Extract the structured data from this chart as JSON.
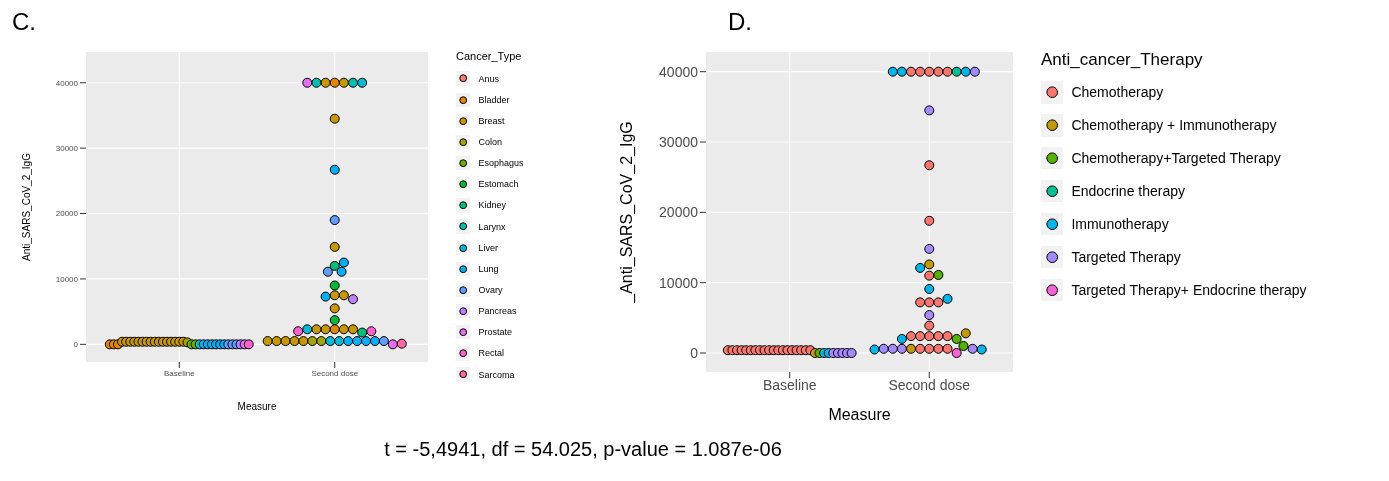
{
  "chart_data": [
    {
      "type": "scatter",
      "title": "C.",
      "xlabel": "Measure",
      "ylabel": "Anti_SARS_CoV_2_IgG",
      "legend_title": "Cancer_Type",
      "categories": [
        "Baseline",
        "Second dose"
      ],
      "ylim": [
        -2700,
        44700
      ],
      "yticks": [
        0,
        10000,
        20000,
        30000,
        40000
      ],
      "grid": true,
      "legend": "right",
      "marker": "circle",
      "annotations": [
        "t = -5,4941, df = 54.025, p-value = 1.087e-06"
      ],
      "series": [
        {
          "name": "Anus",
          "color": "#f8766d",
          "x": [
            "Baseline"
          ],
          "values": [
            null
          ]
        },
        {
          "name": "Bladder",
          "color": "#e58700",
          "x": [
            "Baseline",
            "Baseline",
            "Baseline",
            "Second dose",
            "Second dose"
          ],
          "values": [
            0,
            0,
            0,
            40000,
            2300
          ]
        },
        {
          "name": "Breast",
          "color": "#c99800",
          "x": [
            "Baseline",
            "Baseline",
            "Baseline",
            "Baseline",
            "Baseline",
            "Baseline",
            "Baseline",
            "Baseline",
            "Baseline",
            "Baseline",
            "Baseline",
            "Baseline",
            "Baseline",
            "Baseline",
            "Baseline",
            "Baseline",
            "Second dose",
            "Second dose",
            "Second dose",
            "Second dose",
            "Second dose",
            "Second dose",
            "Second dose",
            "Second dose",
            "Second dose",
            "Second dose",
            "Second dose",
            "Second dose",
            "Second dose",
            "Second dose",
            "Second dose",
            "Second dose"
          ],
          "values": [
            400,
            400,
            400,
            400,
            400,
            400,
            400,
            400,
            400,
            400,
            400,
            400,
            400,
            400,
            400,
            400,
            40000,
            40000,
            34500,
            14900,
            7500,
            7500,
            5500,
            2300,
            2300,
            2300,
            2300,
            500,
            500,
            500,
            500,
            500
          ]
        },
        {
          "name": "Colon",
          "color": "#a3a500",
          "x": [
            "Baseline",
            "Second dose",
            "Second dose"
          ],
          "values": [
            300,
            500,
            500
          ]
        },
        {
          "name": "Esophagus",
          "color": "#6bb100",
          "x": [
            "Baseline",
            "Baseline"
          ],
          "values": [
            0,
            0
          ]
        },
        {
          "name": "Estomach",
          "color": "#00ba38",
          "x": [
            "Second dose",
            "Second dose"
          ],
          "values": [
            9000,
            3700
          ]
        },
        {
          "name": "Kidney",
          "color": "#00bf7d",
          "x": [
            "Second dose",
            "Second dose"
          ],
          "values": [
            12000,
            1800
          ]
        },
        {
          "name": "Larynx",
          "color": "#00c0af",
          "x": [
            "Second dose",
            "Second dose"
          ],
          "values": [
            40000,
            40000
          ]
        },
        {
          "name": "Liver",
          "color": "#00bcd8",
          "x": [
            "Baseline",
            "Second dose",
            "Second dose",
            "Second dose",
            "Second dose"
          ],
          "values": [
            0,
            40000,
            2300,
            500,
            500
          ]
        },
        {
          "name": "Lung",
          "color": "#00b0f6",
          "x": [
            "Baseline",
            "Baseline",
            "Baseline",
            "Baseline",
            "Baseline",
            "Baseline",
            "Second dose",
            "Second dose",
            "Second dose",
            "Second dose",
            "Second dose",
            "Second dose",
            "Second dose",
            "Second dose"
          ],
          "values": [
            0,
            0,
            0,
            0,
            0,
            0,
            26700,
            12500,
            11100,
            7300,
            500,
            500,
            500,
            500
          ]
        },
        {
          "name": "Ovary",
          "color": "#619cff",
          "x": [
            "Baseline",
            "Baseline",
            "Baseline",
            "Second dose",
            "Second dose",
            "Second dose"
          ],
          "values": [
            0,
            0,
            0,
            19000,
            11100,
            500
          ]
        },
        {
          "name": "Pancreas",
          "color": "#b983ff",
          "x": [
            "Baseline",
            "Second dose"
          ],
          "values": [
            0,
            6900
          ]
        },
        {
          "name": "Prostate",
          "color": "#e76bf3",
          "x": [
            "Baseline",
            "Second dose",
            "Second dose"
          ],
          "values": [
            0,
            40000,
            0
          ]
        },
        {
          "name": "Rectal",
          "color": "#fd61d1",
          "x": [
            "Baseline",
            "Second dose",
            "Second dose"
          ],
          "values": [
            0,
            2000,
            2000
          ]
        },
        {
          "name": "Sarcoma",
          "color": "#ff67a4",
          "x": [
            "Second dose"
          ],
          "values": [
            100
          ]
        }
      ]
    },
    {
      "type": "scatter",
      "title": "D.",
      "xlabel": "Measure",
      "ylabel": "_Anti_SARS_CoV_2_IgG",
      "legend_title": "Anti_cancer_Therapy",
      "categories": [
        "Baseline",
        "Second dose"
      ],
      "ylim": [
        -2700,
        42800
      ],
      "yticks": [
        0,
        10000,
        20000,
        30000,
        40000
      ],
      "grid": true,
      "legend": "right",
      "marker": "circle",
      "series": [
        {
          "name": "Chemotherapy",
          "color": "#f8766d",
          "x": [
            "Baseline",
            "Baseline",
            "Baseline",
            "Baseline",
            "Baseline",
            "Baseline",
            "Baseline",
            "Baseline",
            "Baseline",
            "Baseline",
            "Baseline",
            "Baseline",
            "Baseline",
            "Baseline",
            "Baseline",
            "Baseline",
            "Baseline",
            "Baseline",
            "Baseline",
            "Second dose",
            "Second dose",
            "Second dose",
            "Second dose",
            "Second dose",
            "Second dose",
            "Second dose",
            "Second dose",
            "Second dose",
            "Second dose",
            "Second dose",
            "Second dose",
            "Second dose",
            "Second dose",
            "Second dose",
            "Second dose",
            "Second dose",
            "Second dose",
            "Second dose",
            "Second dose",
            "Second dose"
          ],
          "values": [
            400,
            400,
            400,
            400,
            400,
            400,
            400,
            400,
            400,
            400,
            400,
            400,
            400,
            400,
            400,
            400,
            400,
            400,
            400,
            40000,
            40000,
            40000,
            40000,
            40000,
            26700,
            18800,
            11000,
            7200,
            7200,
            7200,
            3900,
            2400,
            2400,
            2400,
            2400,
            2400,
            600,
            600,
            600,
            600
          ]
        },
        {
          "name": "Chemotherapy + Immunotherapy",
          "color": "#c49a00",
          "x": [
            "Baseline",
            "Second dose",
            "Second dose",
            "Second dose"
          ],
          "values": [
            0,
            12600,
            2800,
            600
          ]
        },
        {
          "name": "Chemotherapy+Targeted Therapy",
          "color": "#53b400",
          "x": [
            "Baseline",
            "Second dose",
            "Second dose",
            "Second dose"
          ],
          "values": [
            0,
            11100,
            2000,
            1000
          ]
        },
        {
          "name": "Endocrine therapy",
          "color": "#00c094",
          "x": [
            "Second dose"
          ],
          "values": [
            40000
          ]
        },
        {
          "name": "Immunotherapy",
          "color": "#00b6eb",
          "x": [
            "Baseline",
            "Baseline",
            "Second dose",
            "Second dose",
            "Second dose",
            "Second dose",
            "Second dose",
            "Second dose",
            "Second dose",
            "Second dose",
            "Second dose"
          ],
          "values": [
            0,
            0,
            40000,
            40000,
            40000,
            12100,
            9100,
            7700,
            2000,
            500,
            500
          ]
        },
        {
          "name": "Targeted Therapy",
          "color": "#a58aff",
          "x": [
            "Baseline",
            "Baseline",
            "Baseline",
            "Baseline",
            "Baseline",
            "Second dose",
            "Second dose",
            "Second dose",
            "Second dose",
            "Second dose",
            "Second dose",
            "Second dose",
            "Second dose"
          ],
          "values": [
            0,
            0,
            0,
            0,
            0,
            40000,
            34500,
            14800,
            5400,
            600,
            600,
            600,
            600
          ]
        },
        {
          "name": "Targeted Therapy+ Endocrine therapy",
          "color": "#fb61d7",
          "x": [
            "Second dose"
          ],
          "values": [
            0
          ]
        }
      ]
    }
  ]
}
